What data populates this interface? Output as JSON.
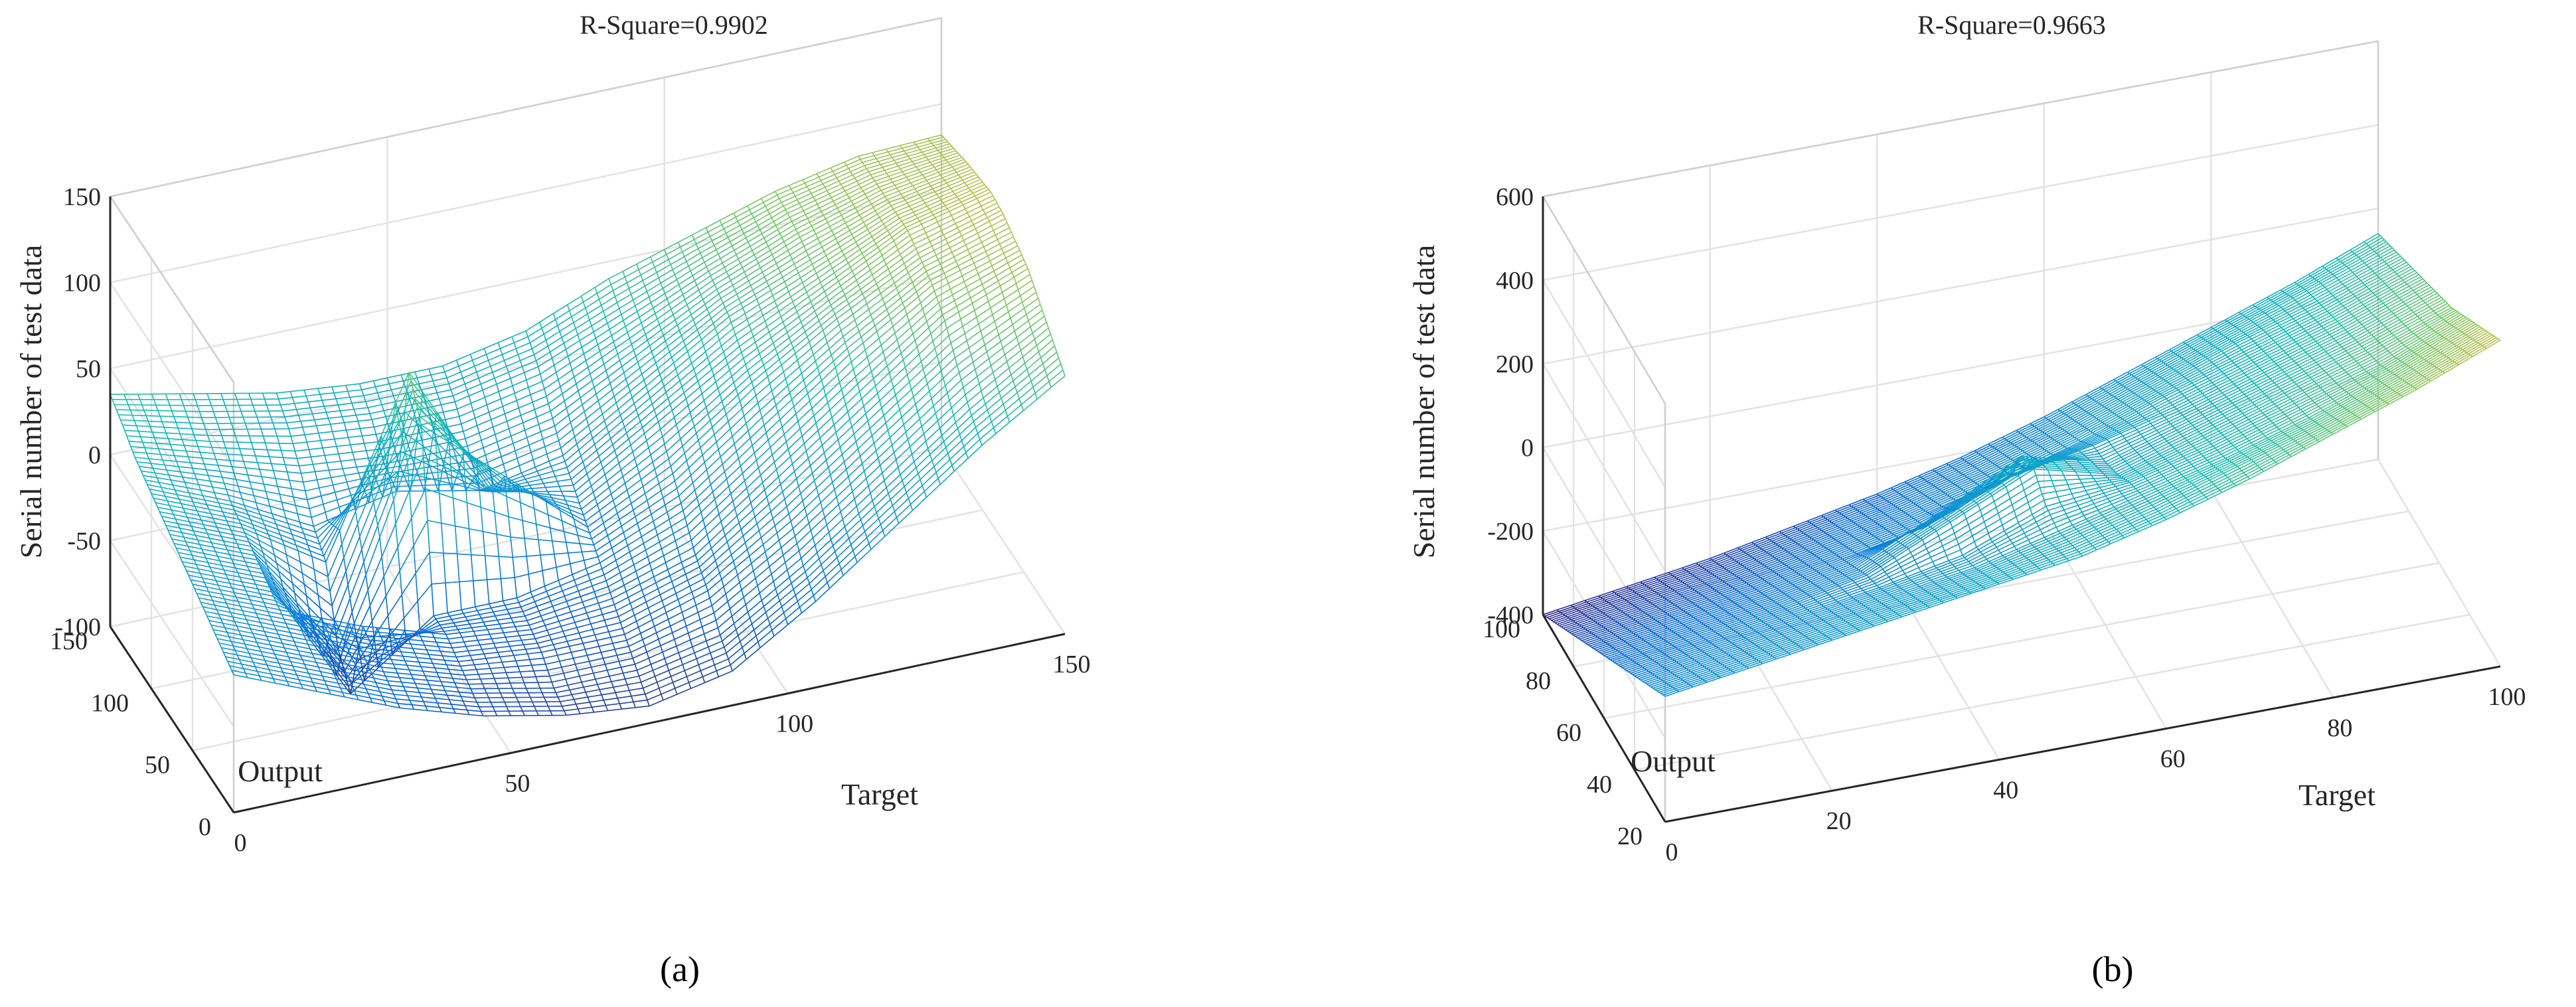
{
  "chart_data": [
    {
      "type": "surface",
      "panel_label": "(a)",
      "title": "R-Square=0.9902",
      "xlabel": "Target",
      "ylabel": "Output",
      "zlabel": "Serial number of test data",
      "xlim": [
        0,
        150
      ],
      "ylim": [
        0,
        150
      ],
      "zlim": [
        -100,
        150
      ],
      "x_ticks": [
        "0",
        "50",
        "100",
        "150"
      ],
      "y_ticks": [
        "0",
        "50",
        "100",
        "150"
      ],
      "z_ticks": [
        "-100",
        "-50",
        "0",
        "50",
        "100",
        "150"
      ],
      "grid": true,
      "colormap": "parula",
      "surface": {
        "x": [
          0,
          15,
          30,
          45,
          60,
          75,
          90,
          105,
          120,
          135,
          150
        ],
        "y": [
          0,
          15,
          30,
          45,
          60,
          75,
          90,
          105,
          120,
          135,
          150
        ],
        "z": [
          [
            -20,
            -40,
            -60,
            -75,
            -85,
            -90,
            -80,
            -50,
            -15,
            20,
            50
          ],
          [
            -15,
            -35,
            -55,
            -70,
            -80,
            -80,
            -70,
            -40,
            -5,
            30,
            60
          ],
          [
            -10,
            -30,
            -50,
            -65,
            -70,
            -70,
            -55,
            -25,
            10,
            45,
            70
          ],
          [
            -5,
            -25,
            -45,
            -60,
            -65,
            -60,
            -45,
            -10,
            25,
            60,
            80
          ],
          [
            0,
            -20,
            -95,
            -60,
            -60,
            -50,
            -30,
            5,
            40,
            70,
            85
          ],
          [
            5,
            -15,
            -80,
            40,
            0,
            -40,
            -15,
            20,
            50,
            75,
            90
          ],
          [
            10,
            -10,
            -40,
            60,
            -20,
            -30,
            0,
            30,
            55,
            80,
            92
          ],
          [
            15,
            -5,
            -30,
            -20,
            -30,
            -20,
            10,
            40,
            60,
            80,
            90
          ],
          [
            20,
            5,
            -10,
            -15,
            -15,
            -5,
            20,
            45,
            65,
            80,
            88
          ],
          [
            28,
            15,
            5,
            0,
            0,
            10,
            30,
            50,
            68,
            80,
            85
          ],
          [
            35,
            25,
            15,
            10,
            10,
            20,
            40,
            55,
            70,
            80,
            82
          ]
        ]
      }
    },
    {
      "type": "surface",
      "panel_label": "(b)",
      "title": "R-Square=0.9663",
      "xlabel": "Target",
      "ylabel": "Output",
      "zlabel": "Serial number of test data",
      "xlim": [
        0,
        100
      ],
      "ylim": [
        20,
        100
      ],
      "zlim": [
        -400,
        600
      ],
      "x_ticks": [
        "0",
        "20",
        "40",
        "60",
        "80",
        "100"
      ],
      "y_ticks": [
        "20",
        "40",
        "60",
        "80",
        "100"
      ],
      "z_ticks": [
        "-400",
        "-200",
        "0",
        "200",
        "400",
        "600"
      ],
      "grid": true,
      "colormap": "parula",
      "surface": {
        "x": [
          0,
          10,
          20,
          30,
          40,
          50,
          60,
          70,
          80,
          90,
          100
        ],
        "y": [
          20,
          28,
          36,
          44,
          52,
          60,
          68,
          76,
          84,
          92,
          100
        ],
        "z": [
          [
            -100,
            -70,
            -40,
            -10,
            20,
            50,
            100,
            160,
            230,
            300,
            380
          ],
          [
            -130,
            -100,
            -70,
            -40,
            -10,
            30,
            80,
            140,
            200,
            270,
            350
          ],
          [
            -160,
            -130,
            -100,
            -70,
            -40,
            10,
            60,
            110,
            170,
            240,
            320
          ],
          [
            -190,
            -160,
            -130,
            -100,
            -60,
            20,
            40,
            90,
            150,
            210,
            290
          ],
          [
            -220,
            -190,
            -160,
            -120,
            -30,
            60,
            10,
            70,
            130,
            190,
            260
          ],
          [
            -250,
            -220,
            -190,
            -150,
            -60,
            40,
            -10,
            50,
            110,
            170,
            240
          ],
          [
            -280,
            -250,
            -220,
            -180,
            -140,
            -60,
            -20,
            30,
            90,
            150,
            220
          ],
          [
            -310,
            -280,
            -250,
            -210,
            -170,
            -120,
            -60,
            10,
            70,
            130,
            200
          ],
          [
            -340,
            -310,
            -280,
            -240,
            -200,
            -150,
            -90,
            -20,
            50,
            110,
            180
          ],
          [
            -370,
            -340,
            -310,
            -270,
            -230,
            -180,
            -120,
            -50,
            20,
            90,
            160
          ],
          [
            -400,
            -370,
            -340,
            -300,
            -260,
            -210,
            -150,
            -80,
            -10,
            60,
            140
          ]
        ]
      }
    }
  ]
}
